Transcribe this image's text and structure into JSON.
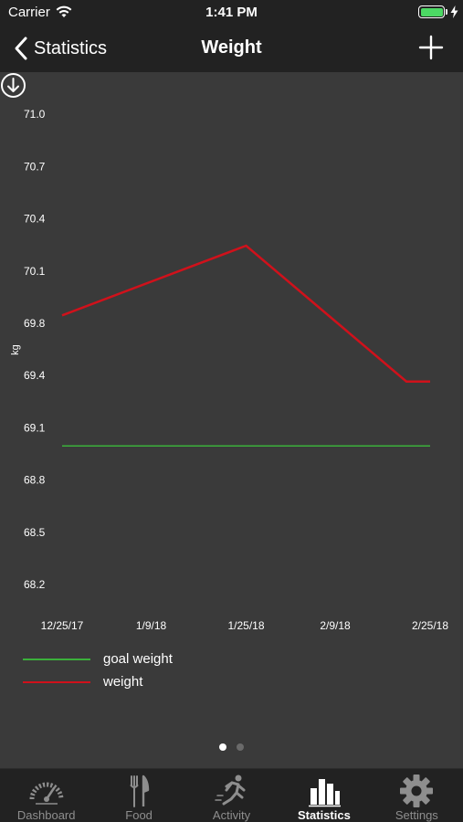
{
  "status_bar": {
    "carrier": "Carrier",
    "time": "1:41 PM"
  },
  "nav": {
    "back_label": "Statistics",
    "title": "Weight"
  },
  "colors": {
    "goal": "#3bb03b",
    "weight": "#d0111b",
    "tick_text": "#ffffff",
    "active_dot": "#ffffff",
    "inactive_dot": "#6a6a6a"
  },
  "chart_data": {
    "type": "line",
    "ylabel": "kg",
    "yticks": [
      "71.0",
      "70.7",
      "70.4",
      "70.1",
      "69.8",
      "69.4",
      "69.1",
      "68.8",
      "68.5",
      "68.2"
    ],
    "xticks": [
      "12/25/17",
      "1/9/18",
      "1/25/18",
      "2/9/18",
      "2/25/18"
    ],
    "ylim": [
      68.2,
      71.0
    ],
    "grid": false,
    "legend_position": "bottom-left",
    "series": [
      {
        "name": "goal weight",
        "x": [
          "12/25/17",
          "2/25/18"
        ],
        "values": [
          69.0,
          69.0
        ]
      },
      {
        "name": "weight",
        "x": [
          "12/25/17",
          "1/25/18",
          "2/21/18",
          "2/25/18"
        ],
        "values": [
          69.85,
          70.25,
          69.37,
          69.37
        ]
      }
    ]
  },
  "page_control": {
    "count": 2,
    "active": 0
  },
  "tabs": [
    {
      "label": "Dashboard",
      "icon": "speedometer-icon"
    },
    {
      "label": "Food",
      "icon": "fork-knife-icon"
    },
    {
      "label": "Activity",
      "icon": "runner-icon"
    },
    {
      "label": "Statistics",
      "icon": "bar-chart-icon",
      "active": true
    },
    {
      "label": "Settings",
      "icon": "gear-icon"
    }
  ]
}
